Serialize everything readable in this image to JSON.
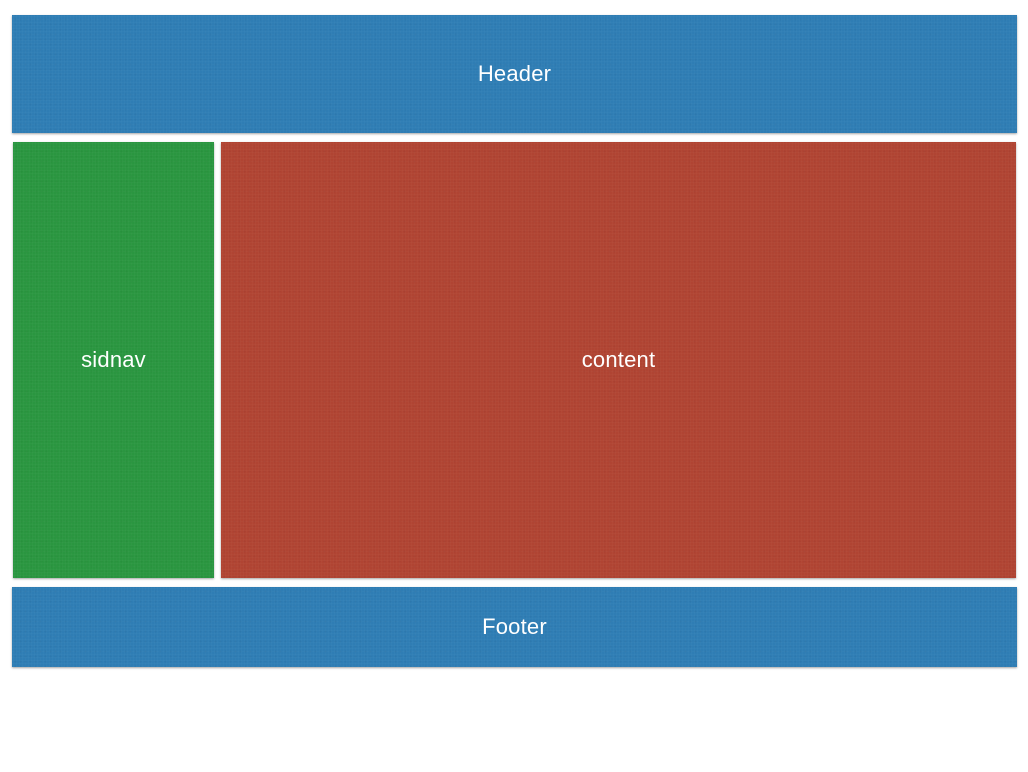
{
  "header": {
    "label": "Header",
    "color": "#2f7db4"
  },
  "sidenav": {
    "label": "sidnav",
    "color": "#2a9640"
  },
  "content": {
    "label": "content",
    "color": "#b04433"
  },
  "footer": {
    "label": "Footer",
    "color": "#2f7db4"
  }
}
